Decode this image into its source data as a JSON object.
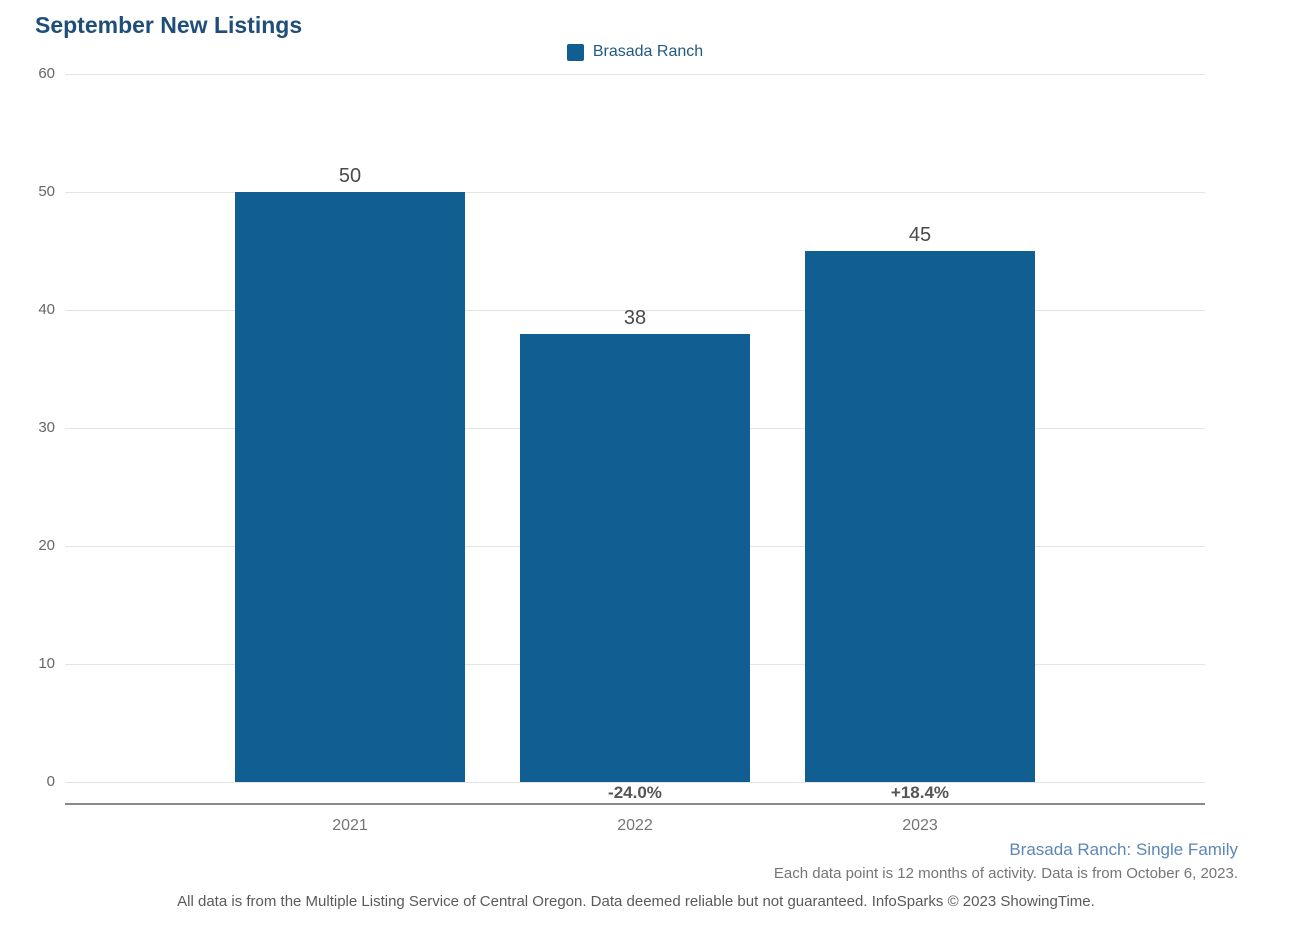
{
  "title": "September New Listings",
  "legend": {
    "label": "Brasada Ranch"
  },
  "chart_data": {
    "type": "bar",
    "title": "September New Listings",
    "categories": [
      "2021",
      "2022",
      "2023"
    ],
    "values": [
      50,
      38,
      45
    ],
    "bar_value_labels": [
      "50",
      "38",
      "45"
    ],
    "pct_change_labels": [
      "",
      "-24.0%",
      "+18.4%"
    ],
    "series": [
      {
        "name": "Brasada Ranch",
        "values": [
          50,
          38,
          45
        ]
      }
    ],
    "xlabel": "",
    "ylabel": "",
    "ylim": [
      0,
      60
    ],
    "yticks": [
      0,
      10,
      20,
      30,
      40,
      50,
      60
    ],
    "grid": "horizontal",
    "legend_position": "top-center",
    "bar_color": "#115f92"
  },
  "footer": {
    "series_note": "Brasada Ranch: Single Family",
    "data_note": "Each data point is 12 months of activity. Data is from October 6, 2023.",
    "disclaimer": "All data is from the Multiple Listing Service of Central Oregon. Data deemed reliable but not guaranteed. InfoSparks © 2023 ShowingTime."
  },
  "colors": {
    "bar": "#115f92",
    "title_text": "#1f4e79",
    "legend_text": "#235a80",
    "gridline": "#e4e4e4",
    "axis_line": "#8a8a8a",
    "y_tick_text": "#666666",
    "x_tick_text": "#757575",
    "value_label_text": "#4a4a4a",
    "pct_label_text": "#555555",
    "series_note_text": "#5b86b8",
    "footnote_text": "#757575",
    "disclaimer_text": "#5a5a5a"
  }
}
